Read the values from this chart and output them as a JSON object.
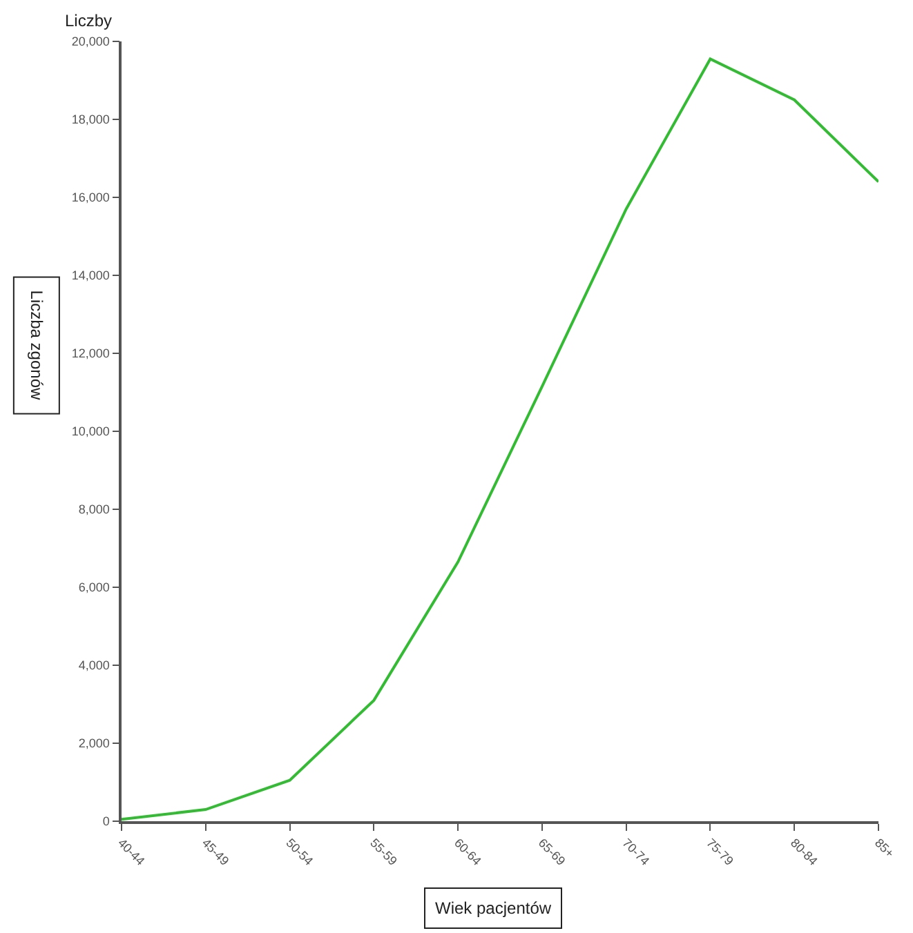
{
  "chart_data": {
    "type": "line",
    "title": "Liczby",
    "xlabel": "Wiek pacjentów",
    "ylabel": "Liczba zgonów",
    "categories": [
      "40-44",
      "45-49",
      "50-54",
      "55-59",
      "60-64",
      "65-69",
      "70-74",
      "75-79",
      "80-84",
      "85+"
    ],
    "series": [
      {
        "color": "#33bb33",
        "values": [
          50,
          300,
          1050,
          3100,
          6650,
          11150,
          15700,
          19550,
          18500,
          16400
        ]
      }
    ],
    "ylim": [
      0,
      20000
    ],
    "yticks": [
      {
        "value": 0,
        "label": "0"
      },
      {
        "value": 2000,
        "label": "2,000"
      },
      {
        "value": 4000,
        "label": "4,000"
      },
      {
        "value": 6000,
        "label": "6,000"
      },
      {
        "value": 8000,
        "label": "8,000"
      },
      {
        "value": 10000,
        "label": "10,000"
      },
      {
        "value": 12000,
        "label": "12,000"
      },
      {
        "value": 14000,
        "label": "14,000"
      },
      {
        "value": 16000,
        "label": "16,000"
      },
      {
        "value": 18000,
        "label": "18,000"
      },
      {
        "value": 20000,
        "label": "20,000"
      }
    ],
    "legend": false,
    "marker": "none",
    "line_style": "solid"
  }
}
